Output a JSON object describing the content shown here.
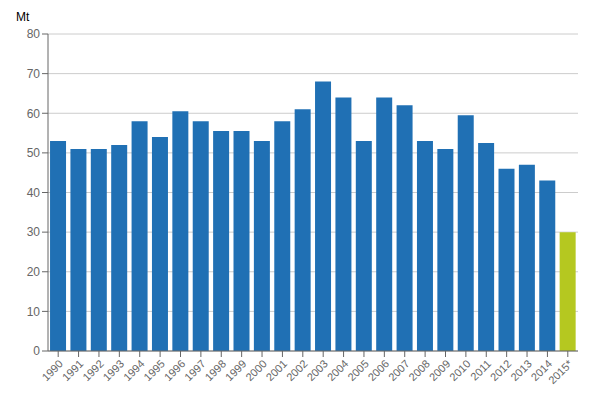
{
  "chart_data": {
    "type": "bar",
    "ylabel": "Mt",
    "categories": [
      "1990",
      "1991",
      "1992",
      "1993",
      "1994",
      "1995",
      "1996",
      "1997",
      "1998",
      "1999",
      "2000",
      "2001",
      "2002",
      "2003",
      "2004",
      "2005",
      "2006",
      "2007",
      "2008",
      "2009",
      "2010",
      "2011",
      "2012",
      "2013",
      "2014",
      "2015*"
    ],
    "values": [
      53,
      51,
      51,
      52,
      58,
      54,
      60.5,
      58,
      55.5,
      55.5,
      53,
      58,
      61,
      68,
      64,
      53,
      64,
      62,
      53,
      51,
      59.5,
      52.5,
      46,
      47,
      43,
      30
    ],
    "colors": [
      "#2070b4",
      "#2070b4",
      "#2070b4",
      "#2070b4",
      "#2070b4",
      "#2070b4",
      "#2070b4",
      "#2070b4",
      "#2070b4",
      "#2070b4",
      "#2070b4",
      "#2070b4",
      "#2070b4",
      "#2070b4",
      "#2070b4",
      "#2070b4",
      "#2070b4",
      "#2070b4",
      "#2070b4",
      "#2070b4",
      "#2070b4",
      "#2070b4",
      "#2070b4",
      "#2070b4",
      "#2070b4",
      "#b5c820"
    ],
    "ylim": [
      0,
      80
    ],
    "yticks": [
      0,
      10,
      20,
      30,
      40,
      50,
      60,
      70,
      80
    ],
    "grid": true
  }
}
